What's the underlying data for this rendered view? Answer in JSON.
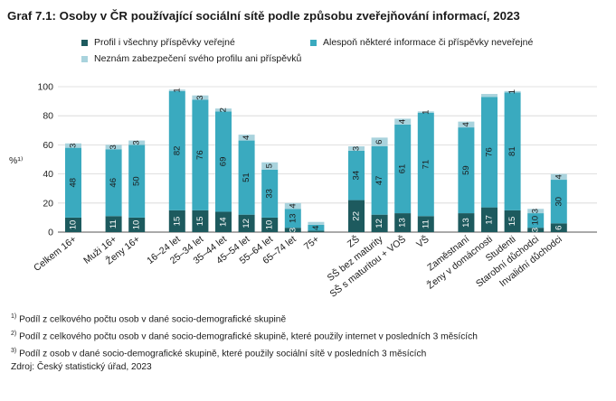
{
  "title": "Graf 7.1: Osoby v ČR používající sociální sítě podle způsobu zveřejňování informací, 2023",
  "legend": [
    {
      "label": "Profil i všechny příspěvky veřejné",
      "color": "#1d5a5e"
    },
    {
      "label": "Alespoň některé informace či příspěvky neveřejné",
      "color": "#3aaabf"
    },
    {
      "label": "Neznám zabezpečení svého profilu ani příspěvků",
      "color": "#a9d3dd"
    }
  ],
  "footnotes": [
    {
      "mark": "1)",
      "text": "Podíl z celkového počtu osob v dané socio-demografické skupině"
    },
    {
      "mark": "2)",
      "text": "Podíl z celkového počtu osob v dané socio-demografické skupině, které použily internet v posledních 3 měsících"
    },
    {
      "mark": "3)",
      "text": "Podíl z osob v dané socio-demografické skupině, které použily sociální sítě v posledních 3 měsících"
    }
  ],
  "source": "Zdroj: Český statistický úřad, 2023",
  "chart_data": {
    "type": "bar",
    "stacked": true,
    "ylabel": "%¹⁾",
    "ylim": [
      0,
      100
    ],
    "yticks": [
      0,
      20,
      40,
      60,
      80,
      100
    ],
    "grid": true,
    "categories": [
      "Celkem 16+",
      "Muži 16+",
      "Ženy 16+",
      "16–24 let",
      "25–34 let",
      "35–44 let",
      "45–54 let",
      "55–64 let",
      "65–74 let",
      "75+",
      "ZŠ",
      "SŠ bez maturity",
      "SŠ s maturitou + VOŠ",
      "VŠ",
      "Zaměstnaní",
      "Ženy v domácnosti",
      "Studenti",
      "Starobní důchodci",
      "Invalidní důchodci"
    ],
    "groups": [
      [
        0
      ],
      [
        1,
        2
      ],
      [
        3,
        4,
        5,
        6,
        7,
        8,
        9
      ],
      [
        10,
        11,
        12,
        13
      ],
      [
        14,
        15,
        16,
        17,
        18
      ]
    ],
    "series": [
      {
        "name": "Profil i všechny příspěvky veřejné",
        "values": [
          10,
          11,
          10,
          15,
          15,
          14,
          12,
          10,
          3,
          1,
          22,
          12,
          13,
          11,
          13,
          17,
          15,
          3,
          6
        ],
        "labels": [
          "10",
          "11",
          "10",
          "15",
          "15",
          "14",
          "12",
          "10",
          "3",
          "",
          "22",
          "12",
          "13",
          "11",
          "13",
          "17",
          "15",
          "3",
          "6"
        ]
      },
      {
        "name": "Alespoň některé informace či příspěvky neveřejné",
        "values": [
          48,
          46,
          50,
          82,
          76,
          69,
          51,
          33,
          13,
          4,
          34,
          47,
          61,
          71,
          59,
          76,
          81,
          10,
          30
        ],
        "labels": [
          "48",
          "46",
          "50",
          "82",
          "76",
          "69",
          "51",
          "33",
          "13",
          "4",
          "34",
          "47",
          "61",
          "71",
          "59",
          "76",
          "81",
          "10",
          "30"
        ]
      },
      {
        "name": "Neznám zabezpečení svého profilu ani příspěvků",
        "values": [
          3,
          3,
          3,
          1,
          3,
          2,
          4,
          5,
          4,
          2,
          3,
          6,
          4,
          1,
          4,
          2,
          1,
          3,
          4
        ],
        "labels": [
          "3",
          "3",
          "3",
          "1",
          "3",
          "2",
          "4",
          "5",
          "4",
          "",
          "3",
          "6",
          "4",
          "1",
          "4",
          "",
          "1",
          "3",
          "4"
        ]
      }
    ]
  }
}
